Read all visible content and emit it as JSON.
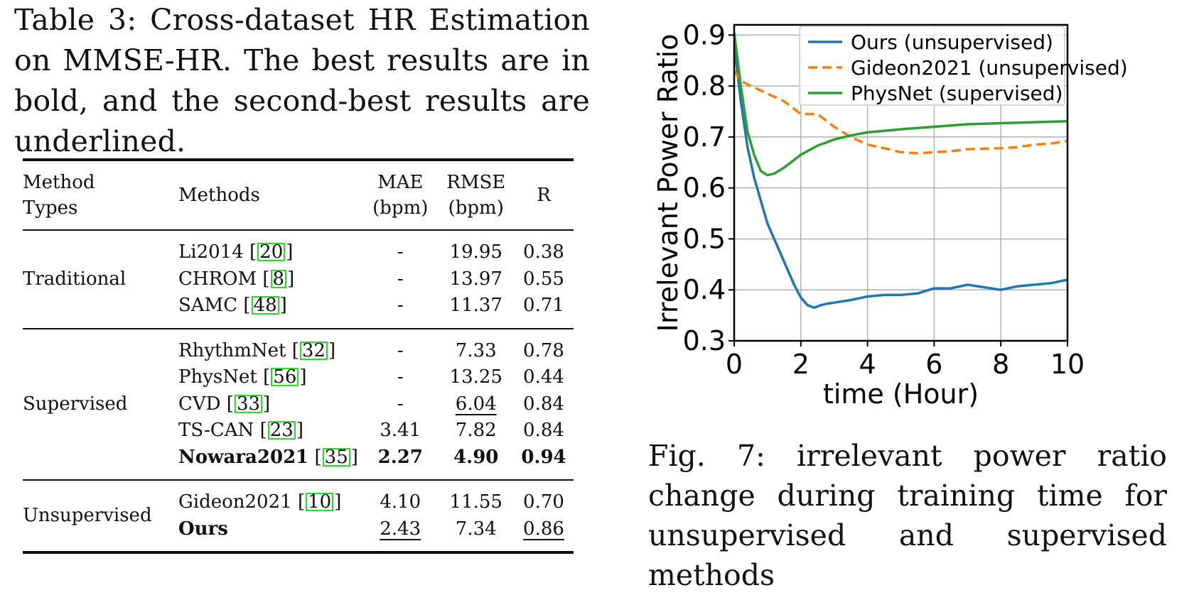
{
  "table": {
    "caption": "Table 3: Cross-dataset HR Estimation on MMSE-HR. The best results are in bold, and the second-best results are underlined.",
    "headers": {
      "method_types_1": "Method",
      "method_types_2": "Types",
      "methods": "Methods",
      "mae_1": "MAE",
      "mae_2": "(bpm)",
      "rmse_1": "RMSE",
      "rmse_2": "(bpm)",
      "r": "R"
    },
    "groups": [
      {
        "type": "Traditional",
        "rows": [
          {
            "method": "Li2014",
            "cite": "20",
            "mae": "-",
            "rmse": "19.95",
            "r": "0.38"
          },
          {
            "method": "CHROM",
            "cite": "8",
            "mae": "-",
            "rmse": "13.97",
            "r": "0.55"
          },
          {
            "method": "SAMC",
            "cite": "48",
            "mae": "-",
            "rmse": "11.37",
            "r": "0.71"
          }
        ]
      },
      {
        "type": "Supervised",
        "rows": [
          {
            "method": "RhythmNet",
            "cite": "32",
            "mae": "-",
            "rmse": "7.33",
            "r": "0.78"
          },
          {
            "method": "PhysNet",
            "cite": "56",
            "mae": "-",
            "rmse": "13.25",
            "r": "0.44"
          },
          {
            "method": "CVD",
            "cite": "33",
            "mae": "-",
            "rmse": "6.04",
            "r": "0.84"
          },
          {
            "method": "TS-CAN",
            "cite": "23",
            "mae": "3.41",
            "rmse": "7.82",
            "r": "0.84"
          },
          {
            "method": "Nowara2021",
            "cite": "35",
            "mae": "2.27",
            "rmse": "4.90",
            "r": "0.94"
          }
        ]
      },
      {
        "type": "Unsupervised",
        "rows": [
          {
            "method": "Gideon2021",
            "cite": "10",
            "mae": "4.10",
            "rmse": "11.55",
            "r": "0.70"
          },
          {
            "method": "Ours",
            "cite": "",
            "mae": "2.43",
            "rmse": "7.34",
            "r": "0.86"
          }
        ]
      }
    ]
  },
  "figure": {
    "caption": "Fig. 7: irrelevant power ratio change during training time for unsupervised and supervised methods"
  },
  "chart_data": {
    "type": "line",
    "title": "",
    "xlabel": "time (Hour)",
    "ylabel": "Irrelevant Power Ratio",
    "xlim": [
      0,
      10
    ],
    "ylim": [
      0.3,
      0.92
    ],
    "xticks": [
      0,
      2,
      4,
      6,
      8,
      10
    ],
    "yticks": [
      0.3,
      0.4,
      0.5,
      0.6,
      0.7,
      0.8,
      0.9
    ],
    "grid": true,
    "legend_position": "top-right",
    "series": [
      {
        "name": "Ours (unsupervised)",
        "color": "#1f77b4",
        "dash": "solid",
        "x": [
          0,
          0.2,
          0.4,
          0.6,
          0.8,
          1.0,
          1.2,
          1.4,
          1.6,
          1.8,
          2.0,
          2.2,
          2.4,
          2.6,
          2.8,
          3.0,
          3.5,
          4.0,
          4.5,
          5.0,
          5.5,
          6.0,
          6.5,
          7.0,
          7.5,
          8.0,
          8.5,
          9.0,
          9.5,
          10.0
        ],
        "y": [
          0.88,
          0.77,
          0.68,
          0.62,
          0.575,
          0.53,
          0.5,
          0.47,
          0.44,
          0.41,
          0.385,
          0.37,
          0.365,
          0.37,
          0.373,
          0.375,
          0.38,
          0.387,
          0.39,
          0.39,
          0.393,
          0.403,
          0.403,
          0.41,
          0.405,
          0.4,
          0.407,
          0.41,
          0.413,
          0.42
        ]
      },
      {
        "name": "Gideon2021 (unsupervised)",
        "color": "#ff7f0e",
        "dash": "dashed",
        "x": [
          0,
          0.2,
          0.5,
          1.0,
          1.5,
          2.0,
          2.5,
          3.0,
          3.5,
          4.0,
          4.5,
          5.0,
          5.5,
          6.0,
          6.5,
          7.0,
          7.5,
          8.0,
          8.5,
          9.0,
          9.5,
          10.0
        ],
        "y": [
          0.83,
          0.81,
          0.8,
          0.785,
          0.77,
          0.745,
          0.745,
          0.72,
          0.7,
          0.685,
          0.678,
          0.67,
          0.668,
          0.67,
          0.672,
          0.676,
          0.677,
          0.678,
          0.68,
          0.685,
          0.687,
          0.692
        ]
      },
      {
        "name": "PhysNet (supervised)",
        "color": "#2ca02c",
        "dash": "solid",
        "x": [
          0,
          0.2,
          0.4,
          0.6,
          0.8,
          1.0,
          1.2,
          1.5,
          2.0,
          2.5,
          3.0,
          3.5,
          4.0,
          5.0,
          6.0,
          7.0,
          8.0,
          9.0,
          10.0
        ],
        "y": [
          0.905,
          0.8,
          0.71,
          0.665,
          0.633,
          0.625,
          0.628,
          0.64,
          0.665,
          0.683,
          0.695,
          0.703,
          0.709,
          0.715,
          0.72,
          0.725,
          0.727,
          0.729,
          0.731
        ]
      }
    ]
  }
}
